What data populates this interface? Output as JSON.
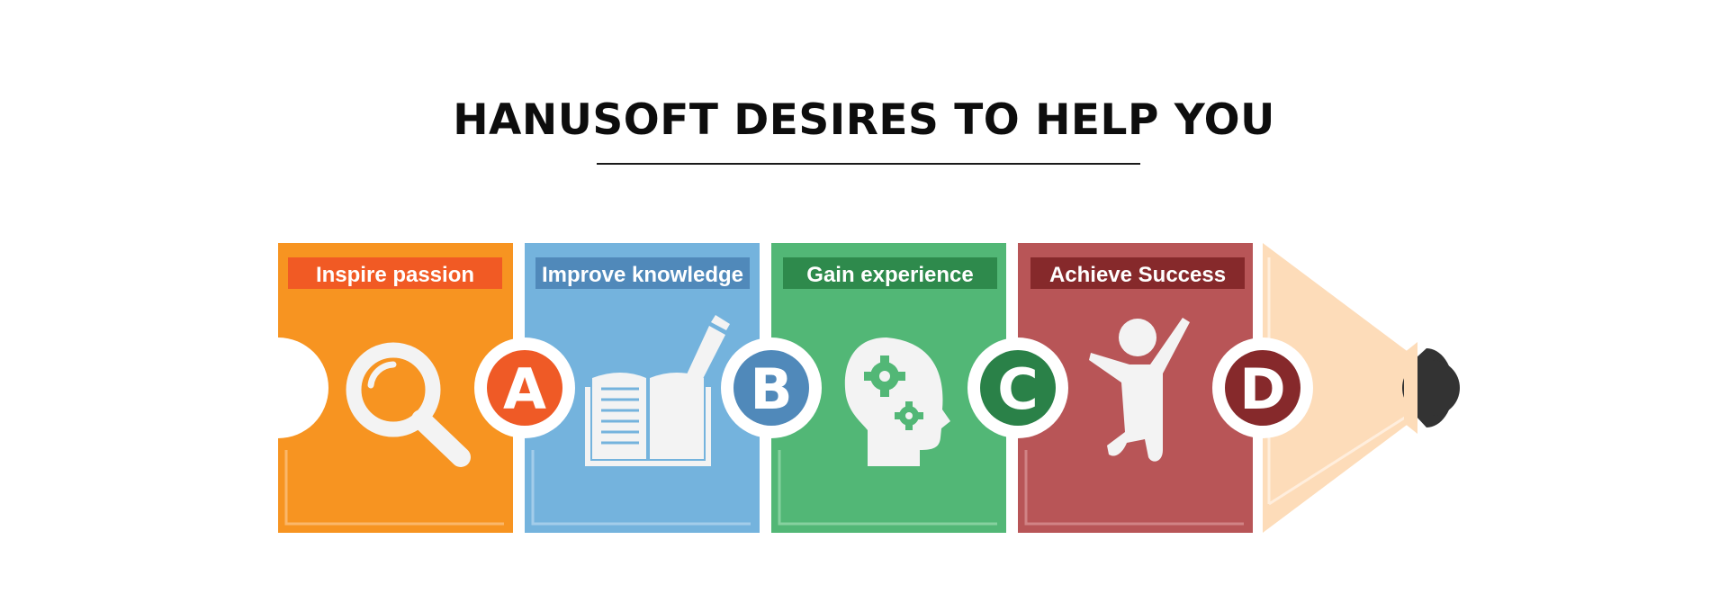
{
  "title": "HANUSOFT DESIRES TO HELP YOU",
  "steps": [
    {
      "label": "Inspire passion",
      "letter": "A",
      "icon": "magnifier-icon",
      "color": "#f79421",
      "label_bg": "#f15a24",
      "badge": "#ef5a26"
    },
    {
      "label": "Improve knowledge",
      "letter": "B",
      "icon": "book-pencil-icon",
      "color": "#74b3dd",
      "label_bg": "#5089ba",
      "badge": "#5089ba"
    },
    {
      "label": "Gain experience",
      "letter": "C",
      "icon": "head-gears-icon",
      "color": "#52b776",
      "label_bg": "#2e8a4c",
      "badge": "#2a8148"
    },
    {
      "label": "Achieve Success",
      "letter": "D",
      "icon": "jumping-person-icon",
      "color": "#b85557",
      "label_bg": "#86292b",
      "badge": "#86292b"
    }
  ],
  "pencil_tip": {
    "wood_color": "#fddcb9",
    "graphite_color": "#333333"
  }
}
